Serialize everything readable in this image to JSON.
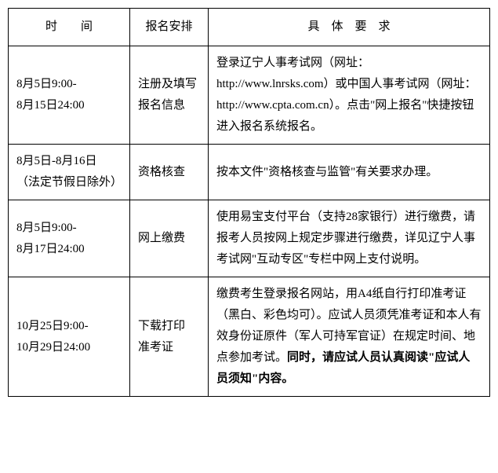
{
  "table": {
    "headers": {
      "time": "时　　间",
      "arrangement": "报名安排",
      "requirement": "具　体　要　求"
    },
    "rows": [
      {
        "time_line1": "8月5日9:00-",
        "time_line2": "8月15日24:00",
        "arrangement_line1": "注册及填写",
        "arrangement_line2": "报名信息",
        "requirement": "登录辽宁人事考试网（网址：http://www.lnrsks.com）或中国人事考试网（网址：http://www.cpta.com.cn）。点击\"网上报名\"快捷按钮进入报名系统报名。"
      },
      {
        "time_line1": "8月5日-8月16日",
        "time_line2": "（法定节假日除外）",
        "arrangement_line1": "资格核查",
        "arrangement_line2": "",
        "requirement": "按本文件\"资格核查与监管\"有关要求办理。"
      },
      {
        "time_line1": "8月5日9:00-",
        "time_line2": "8月17日24:00",
        "arrangement_line1": "网上缴费",
        "arrangement_line2": "",
        "requirement": "使用易宝支付平台（支持28家银行）进行缴费，请报考人员按网上规定步骤进行缴费，详见辽宁人事考试网\"互动专区\"专栏中网上支付说明。"
      },
      {
        "time_line1": "10月25日9:00-",
        "time_line2": "10月29日24:00",
        "arrangement_line1": "下载打印",
        "arrangement_line2": "准考证",
        "requirement_normal": "缴费考生登录报名网站，用A4纸自行打印准考证（黑白、彩色均可）。应试人员须凭准考证和本人有效身份证原件（军人可持军官证）在规定时间、地点参加考试。",
        "requirement_bold": "同时，请应试人员认真阅读\"应试人员须知\"内容。"
      }
    ]
  }
}
